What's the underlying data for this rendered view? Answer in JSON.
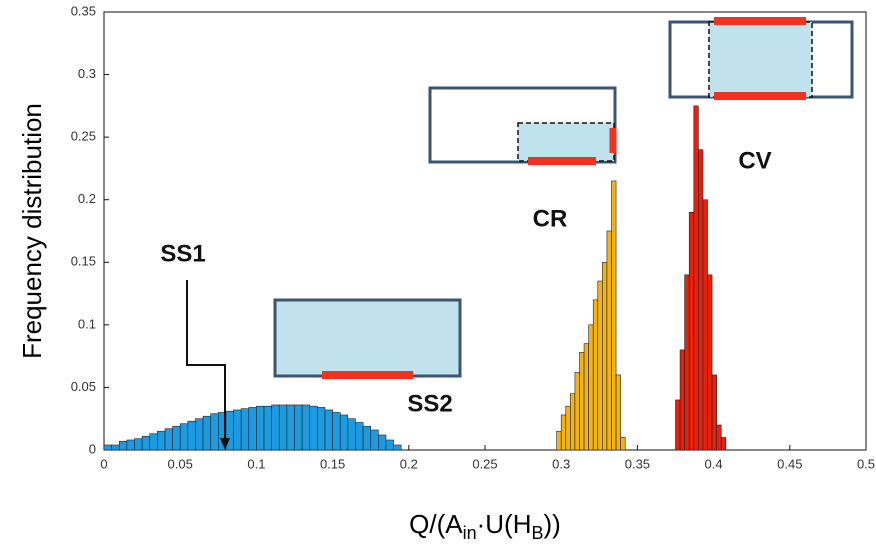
{
  "chart_data": {
    "type": "histogram",
    "y_label": "Frequency distribution",
    "x_label_parts": [
      "Q/(A",
      "in",
      "·U(H",
      "B",
      "))"
    ],
    "xlim": [
      0,
      0.5
    ],
    "ylim": [
      0,
      0.35
    ],
    "xticks": [
      0,
      0.05,
      0.1,
      0.15,
      0.2,
      0.25,
      0.3,
      0.35,
      0.4,
      0.45,
      0.5
    ],
    "yticks": [
      0,
      0.05,
      0.1,
      0.15,
      0.2,
      0.25,
      0.3,
      0.35
    ],
    "series": [
      {
        "name": "SS1",
        "color": "#1e9be0",
        "bins": [
          0,
          0.005,
          0.01,
          0.015,
          0.02,
          0.025,
          0.03,
          0.035,
          0.04,
          0.045,
          0.05,
          0.055,
          0.06,
          0.065,
          0.07,
          0.075,
          0.08,
          0.085,
          0.09,
          0.095,
          0.1,
          0.105,
          0.11,
          0.115,
          0.12,
          0.125,
          0.13,
          0.135,
          0.14,
          0.145,
          0.15,
          0.155,
          0.16,
          0.165,
          0.17,
          0.175,
          0.18,
          0.185,
          0.19,
          0.195
        ],
        "values": [
          0.004,
          0.004,
          0.007,
          0.008,
          0.009,
          0.011,
          0.013,
          0.015,
          0.017,
          0.019,
          0.021,
          0.023,
          0.025,
          0.027,
          0.029,
          0.03,
          0.031,
          0.032,
          0.033,
          0.034,
          0.035,
          0.035,
          0.036,
          0.036,
          0.036,
          0.036,
          0.036,
          0.035,
          0.034,
          0.032,
          0.03,
          0.028,
          0.025,
          0.022,
          0.019,
          0.016,
          0.012,
          0.008,
          0.004
        ]
      },
      {
        "name": "CR",
        "color": "#f2b318",
        "bins": [
          0.297,
          0.3,
          0.303,
          0.306,
          0.309,
          0.312,
          0.315,
          0.318,
          0.321,
          0.324,
          0.327,
          0.33,
          0.333,
          0.336,
          0.339,
          0.342
        ],
        "values": [
          0.015,
          0.028,
          0.035,
          0.045,
          0.062,
          0.078,
          0.085,
          0.1,
          0.12,
          0.135,
          0.15,
          0.175,
          0.215,
          0.06,
          0.01
        ]
      },
      {
        "name": "CV",
        "color": "#e8200c",
        "bins": [
          0.375,
          0.378,
          0.381,
          0.384,
          0.387,
          0.39,
          0.393,
          0.396,
          0.399,
          0.402,
          0.405,
          0.408
        ],
        "values": [
          0.04,
          0.08,
          0.14,
          0.19,
          0.275,
          0.24,
          0.2,
          0.14,
          0.06,
          0.02,
          0.01
        ]
      }
    ],
    "annotation": "SS2"
  }
}
